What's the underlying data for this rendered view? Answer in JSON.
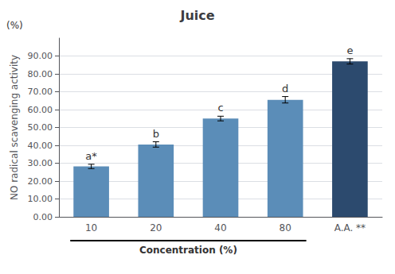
{
  "chart_data": {
    "type": "bar",
    "title": "Juice",
    "xlabel": "Concentration (%)",
    "ylabel": "NO radical scavenging activity",
    "ylabel_unit": "(%)",
    "categories": [
      "10",
      "20",
      "40",
      "80",
      "A.A. **"
    ],
    "values": [
      28.2,
      40.5,
      55.0,
      65.5,
      87.0
    ],
    "errors": [
      1.2,
      1.5,
      1.3,
      1.8,
      1.5
    ],
    "letter_labels": [
      "a*",
      "b",
      "c",
      "d",
      "e"
    ],
    "colors": [
      "#5b8db8",
      "#5b8db8",
      "#5b8db8",
      "#5b8db8",
      "#2c4a6e"
    ],
    "ylim": [
      0,
      100
    ],
    "yticks": [
      {
        "value": 0,
        "label": "0.00"
      },
      {
        "value": 10,
        "label": "10.00"
      },
      {
        "value": 20,
        "label": "20.00"
      },
      {
        "value": 30,
        "label": "30.00"
      },
      {
        "value": 40,
        "label": "40.00"
      },
      {
        "value": 50,
        "label": "50.00"
      },
      {
        "value": 60,
        "label": "60.00"
      },
      {
        "value": 70,
        "label": "70.00"
      },
      {
        "value": 80,
        "label": "80.00"
      },
      {
        "value": 90,
        "label": "90.00"
      }
    ],
    "grid": true
  }
}
